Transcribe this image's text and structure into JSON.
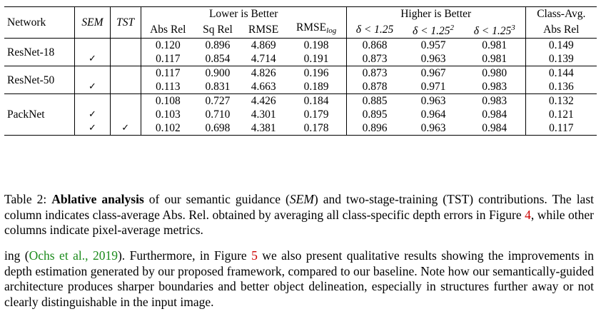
{
  "table": {
    "header": {
      "network": "Network",
      "sem": "SEM",
      "tst": "TST",
      "lower": "Lower is Better",
      "higher": "Higher is Better",
      "class_avg_line1": "Class-Avg.",
      "class_avg_line2": "Abs Rel",
      "cols": [
        "Abs Rel",
        "Sq Rel",
        "RMSE",
        "RMSE",
        "log",
        "δ < 1.25",
        "δ < 1.25",
        "2",
        "δ < 1.25",
        "3"
      ]
    },
    "groups": [
      {
        "name": "ResNet-18",
        "rows": [
          {
            "sem": "",
            "tst": "",
            "v": [
              "0.120",
              "0.896",
              "4.869",
              "0.198",
              "0.868",
              "0.957",
              "0.981",
              "0.149"
            ]
          },
          {
            "sem": "✓",
            "tst": "",
            "v": [
              "0.117",
              "0.854",
              "4.714",
              "0.191",
              "0.873",
              "0.963",
              "0.981",
              "0.139"
            ]
          }
        ]
      },
      {
        "name": "ResNet-50",
        "rows": [
          {
            "sem": "",
            "tst": "",
            "v": [
              "0.117",
              "0.900",
              "4.826",
              "0.196",
              "0.873",
              "0.967",
              "0.980",
              "0.144"
            ]
          },
          {
            "sem": "✓",
            "tst": "",
            "v": [
              "0.113",
              "0.831",
              "4.663",
              "0.189",
              "0.878",
              "0.971",
              "0.983",
              "0.136"
            ]
          }
        ]
      },
      {
        "name": "PackNet",
        "rows": [
          {
            "sem": "",
            "tst": "",
            "v": [
              "0.108",
              "0.727",
              "4.426",
              "0.184",
              "0.885",
              "0.963",
              "0.983",
              "0.132"
            ]
          },
          {
            "sem": "✓",
            "tst": "",
            "v": [
              "0.103",
              "0.710",
              "4.301",
              "0.179",
              "0.895",
              "0.964",
              "0.984",
              "0.121"
            ]
          },
          {
            "sem": "✓",
            "tst": "✓",
            "v": [
              "0.102",
              "0.698",
              "4.381",
              "0.178",
              "0.896",
              "0.963",
              "0.984",
              "0.117"
            ]
          }
        ]
      }
    ]
  },
  "caption": {
    "label": "Table 2: ",
    "bold": "Ablative analysis",
    "t1": " of our semantic guidance (",
    "sem": "SEM",
    "t2": ") and two-stage-training (TST) contributions. The last column indicates class-average Abs. Rel. obtained by averaging all class-specific depth errors in Figure ",
    "fig": "4",
    "t3": ", while other columns indicate pixel-average metrics."
  },
  "paragraph": {
    "t0": "ing (",
    "cite": "Ochs et al., 2019",
    "t1": "). Furthermore, in Figure ",
    "fig": "5",
    "t2": " we also present qualitative results showing the improvements in depth estimation generated by our proposed framework, compared to our baseline. Note how our semantically-guided architecture produces sharper boundaries and better object delineation, especially in structures further away or not clearly distinguishable in the input image."
  }
}
